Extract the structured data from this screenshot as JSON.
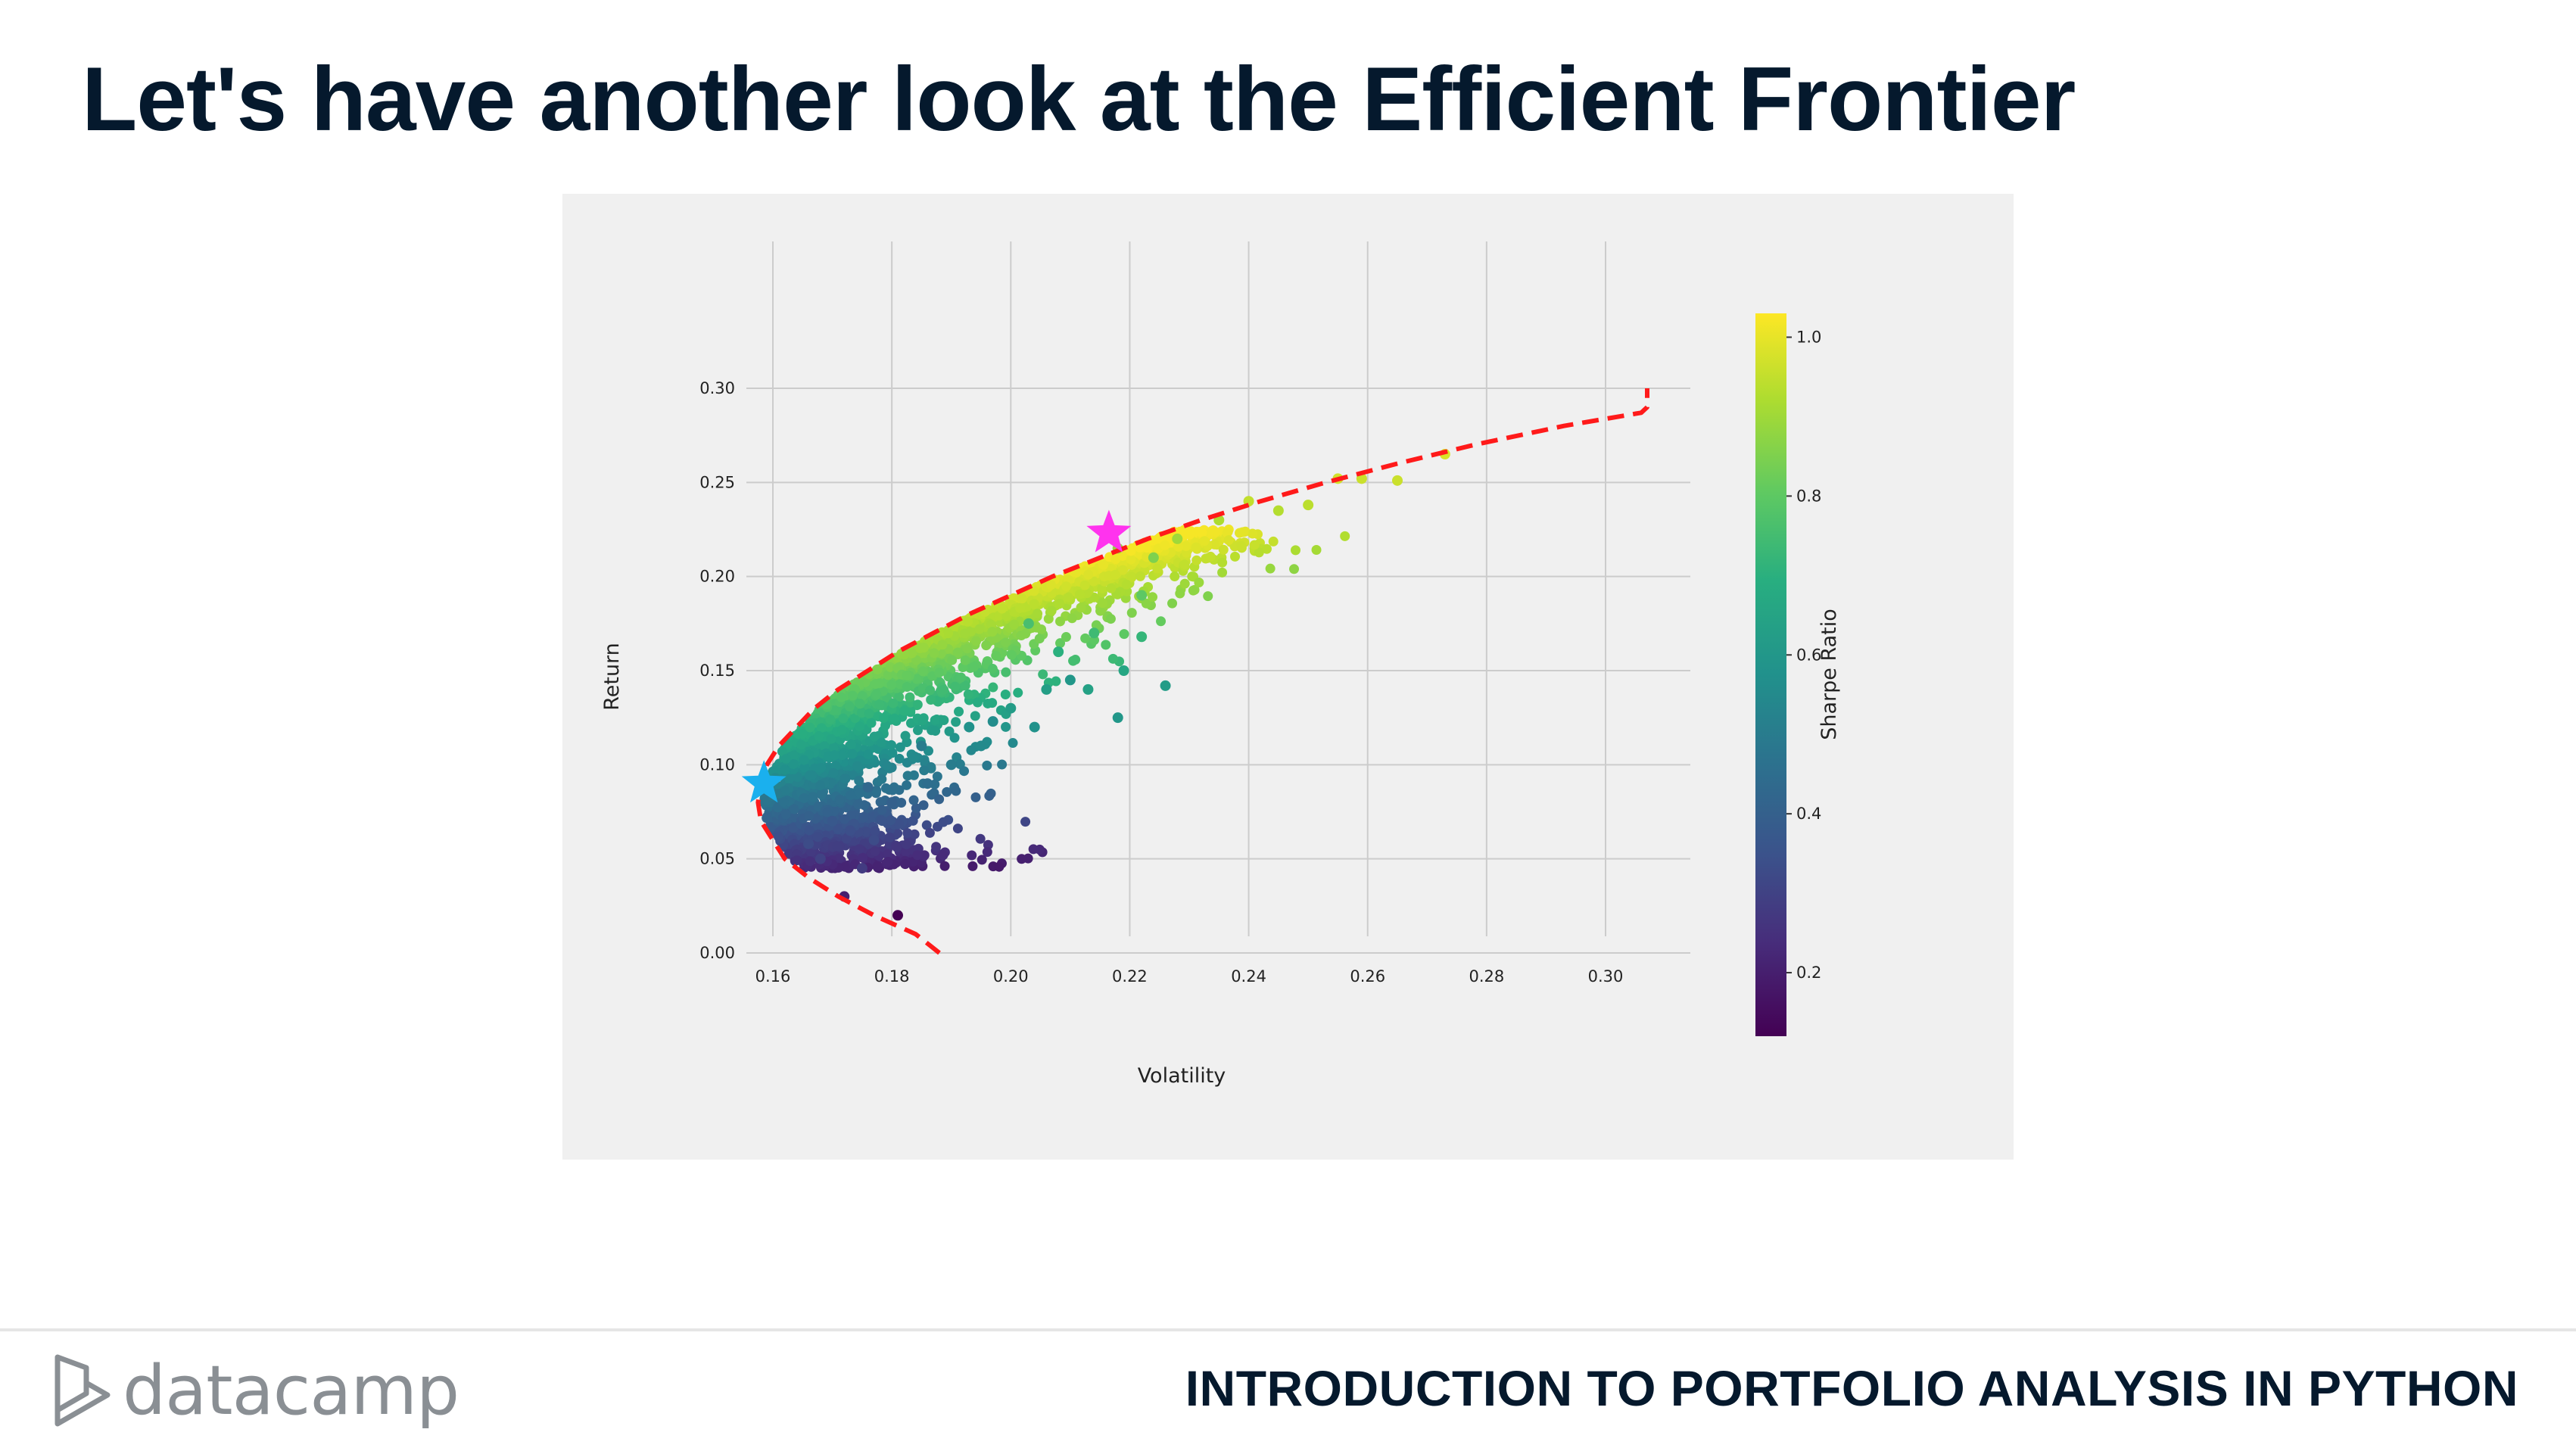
{
  "slide": {
    "title": "Let's have another look at the Efficient Frontier",
    "course": "INTRODUCTION TO PORTFOLIO ANALYSIS IN PYTHON",
    "logo_text": "datacamp"
  },
  "colors": {
    "title": "#05192d",
    "frontier": "#ff1a1a",
    "max_sharpe_star": "#ff33ee",
    "min_vol_star": "#1ab0ee",
    "plot_bg": "#f0f0f0",
    "grid": "#cccccc"
  },
  "chart_data": {
    "type": "scatter",
    "title": "",
    "xlabel": "Volatility",
    "ylabel": "Return",
    "xlim": [
      0.145,
      0.315
    ],
    "ylim": [
      -0.01,
      0.315
    ],
    "xticks": [
      "0.16",
      "0.18",
      "0.20",
      "0.22",
      "0.24",
      "0.26",
      "0.28",
      "0.30"
    ],
    "yticks": [
      "0.00",
      "0.05",
      "0.10",
      "0.15",
      "0.20",
      "0.25",
      "0.30"
    ],
    "grid": true,
    "colorbar": {
      "label": "Sharpe Ratio",
      "range": [
        0.12,
        1.03
      ],
      "ticks": [
        "0.2",
        "0.4",
        "0.6",
        "0.8",
        "1.0"
      ],
      "colormap": "viridis"
    },
    "series": [
      {
        "kind": "frontier",
        "style": "dashed",
        "points": [
          [
            0.188,
            0.0
          ],
          [
            0.184,
            0.01
          ],
          [
            0.177,
            0.02
          ],
          [
            0.171,
            0.03
          ],
          [
            0.166,
            0.04
          ],
          [
            0.162,
            0.05
          ],
          [
            0.16,
            0.06
          ],
          [
            0.158,
            0.07
          ],
          [
            0.1575,
            0.08
          ],
          [
            0.158,
            0.09
          ],
          [
            0.159,
            0.1
          ],
          [
            0.161,
            0.11
          ],
          [
            0.164,
            0.12
          ],
          [
            0.167,
            0.13
          ],
          [
            0.171,
            0.14
          ],
          [
            0.176,
            0.15
          ],
          [
            0.181,
            0.16
          ],
          [
            0.187,
            0.17
          ],
          [
            0.193,
            0.18
          ],
          [
            0.2,
            0.19
          ],
          [
            0.207,
            0.2
          ],
          [
            0.215,
            0.21
          ],
          [
            0.223,
            0.22
          ],
          [
            0.232,
            0.23
          ],
          [
            0.242,
            0.24
          ],
          [
            0.253,
            0.25
          ],
          [
            0.265,
            0.26
          ],
          [
            0.278,
            0.27
          ],
          [
            0.293,
            0.28
          ],
          [
            0.306,
            0.287
          ],
          [
            0.307,
            0.29
          ],
          [
            0.307,
            0.3
          ]
        ]
      },
      {
        "kind": "portfolios",
        "points": [
          [
            0.181,
            0.02,
            0.12
          ],
          [
            0.172,
            0.03,
            0.2
          ],
          [
            0.175,
            0.045,
            0.28
          ],
          [
            0.168,
            0.05,
            0.3
          ],
          [
            0.177,
            0.06,
            0.33
          ],
          [
            0.173,
            0.065,
            0.34
          ],
          [
            0.18,
            0.08,
            0.4
          ],
          [
            0.186,
            0.09,
            0.45
          ],
          [
            0.19,
            0.1,
            0.5
          ],
          [
            0.195,
            0.11,
            0.55
          ],
          [
            0.193,
            0.12,
            0.58
          ],
          [
            0.2,
            0.13,
            0.62
          ],
          [
            0.206,
            0.14,
            0.63
          ],
          [
            0.21,
            0.145,
            0.6
          ],
          [
            0.213,
            0.14,
            0.64
          ],
          [
            0.218,
            0.125,
            0.6
          ],
          [
            0.226,
            0.142,
            0.62
          ],
          [
            0.219,
            0.15,
            0.66
          ],
          [
            0.222,
            0.168,
            0.72
          ],
          [
            0.214,
            0.17,
            0.74
          ],
          [
            0.208,
            0.16,
            0.7
          ],
          [
            0.203,
            0.175,
            0.76
          ],
          [
            0.222,
            0.19,
            0.8
          ],
          [
            0.224,
            0.21,
            0.85
          ],
          [
            0.218,
            0.215,
            0.88
          ],
          [
            0.228,
            0.22,
            0.9
          ],
          [
            0.235,
            0.23,
            0.92
          ],
          [
            0.24,
            0.24,
            0.95
          ],
          [
            0.245,
            0.235,
            0.93
          ],
          [
            0.25,
            0.238,
            0.94
          ],
          [
            0.255,
            0.252,
            0.97
          ],
          [
            0.259,
            0.252,
            0.96
          ],
          [
            0.265,
            0.251,
            0.96
          ],
          [
            0.273,
            0.265,
            0.98
          ],
          [
            0.204,
            0.12,
            0.58
          ],
          [
            0.197,
            0.123,
            0.56
          ],
          [
            0.185,
            0.11,
            0.5
          ],
          [
            0.176,
            0.088,
            0.43
          ],
          [
            0.17,
            0.07,
            0.37
          ],
          [
            0.166,
            0.058,
            0.33
          ]
        ],
        "dense_region_note": "thousands of simulated portfolios fill the region right of the frontier"
      }
    ],
    "markers": [
      {
        "name": "max-sharpe",
        "x": 0.2165,
        "y": 0.223,
        "color": "#ff33ee"
      },
      {
        "name": "min-volatility",
        "x": 0.1585,
        "y": 0.09,
        "color": "#1ab0ee"
      }
    ]
  }
}
